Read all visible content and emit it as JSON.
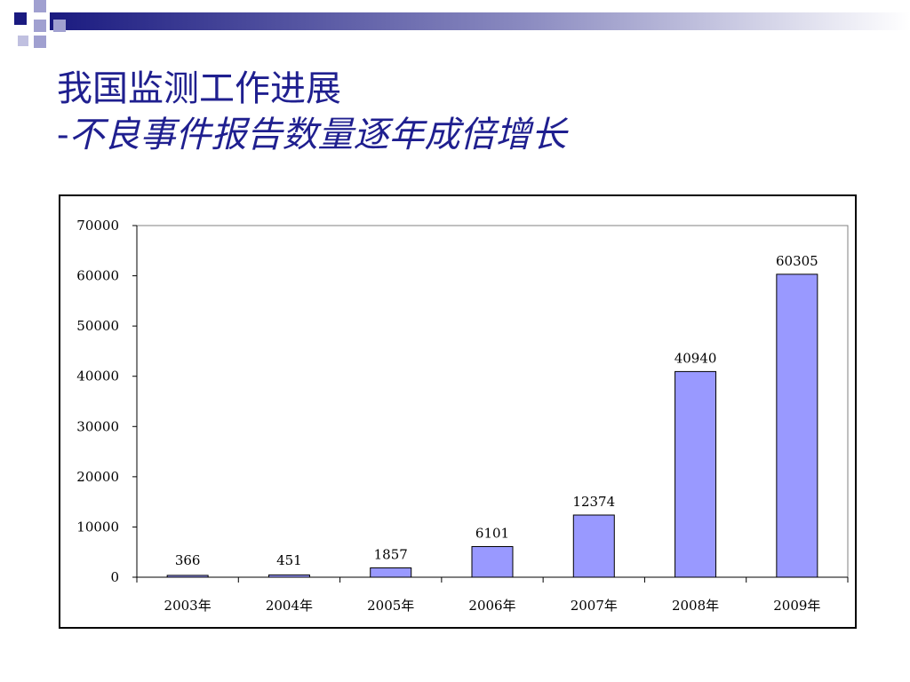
{
  "slide": {
    "title_line1": "我国监测工作进展",
    "title_dash": "-",
    "title_line2": "不良事件报告数量逐年成倍增长"
  },
  "colors": {
    "title": "#1f1f8f",
    "bar_fill": "#9999ff",
    "bar_stroke": "#000000",
    "decor_dark": "#1a1a80",
    "decor_light": "#a0a0d0"
  },
  "chart_data": {
    "type": "bar",
    "categories": [
      "2003年",
      "2004年",
      "2005年",
      "2006年",
      "2007年",
      "2008年",
      "2009年"
    ],
    "values": [
      366,
      451,
      1857,
      6101,
      12374,
      40940,
      60305
    ],
    "data_labels": [
      "366",
      "451",
      "1857",
      "6101",
      "12374",
      "40940",
      "60305"
    ],
    "y_ticks": [
      0,
      10000,
      20000,
      30000,
      40000,
      50000,
      60000,
      70000
    ],
    "ylim": [
      0,
      70000
    ],
    "title": "",
    "xlabel": "",
    "ylabel": "",
    "grid": false,
    "legend": "none"
  }
}
